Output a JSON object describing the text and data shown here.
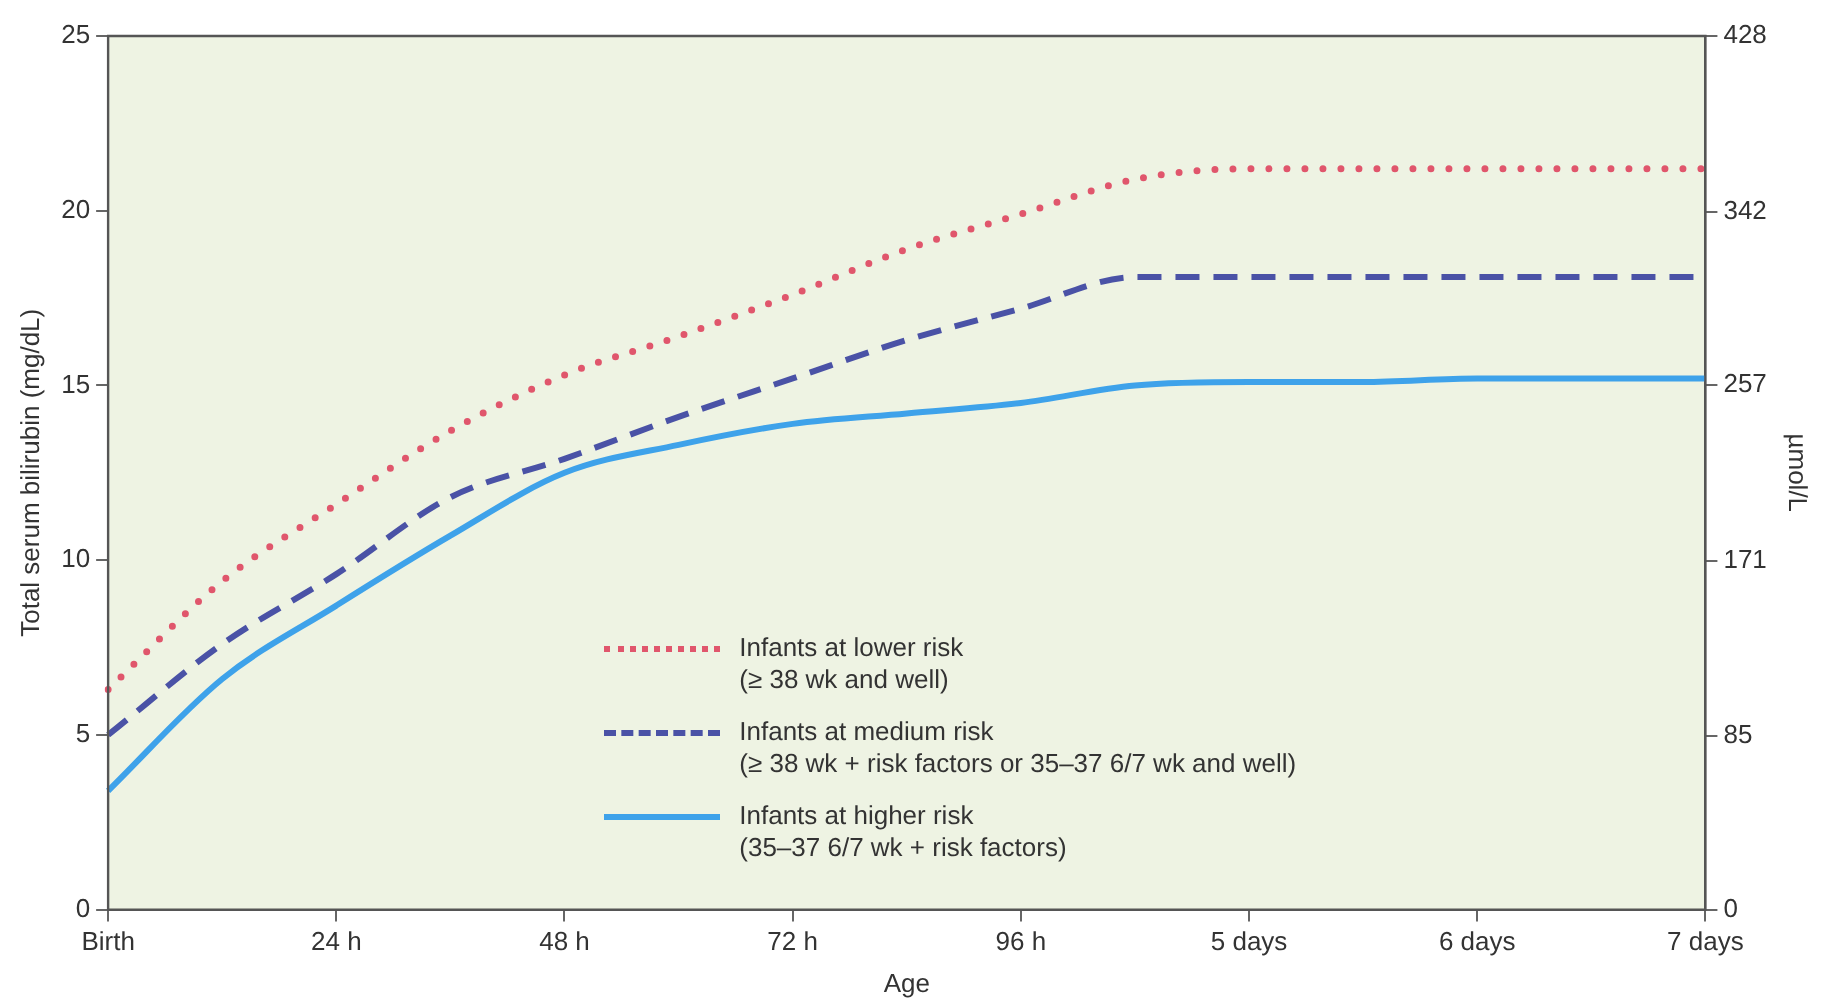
{
  "chart_data": {
    "type": "line",
    "xlabel": "Age",
    "ylabel": "Total serum bilirubin (mg/dL)",
    "y2label": "µmol/L",
    "categories": [
      "Birth",
      null,
      "24 h",
      null,
      "48 h",
      null,
      "72 h",
      null,
      "96 h",
      null,
      "5 days",
      null,
      "6 days",
      null,
      "7 days"
    ],
    "ylim": [
      0,
      25
    ],
    "yticks": [
      0,
      5,
      10,
      15,
      20,
      25
    ],
    "y2lim": [
      0,
      428
    ],
    "y2ticks": [
      0,
      85,
      171,
      257,
      342,
      428
    ],
    "legend": "bottom",
    "grid": false,
    "series": [
      {
        "name": "Infants at lower risk\n(≥ 38 wk and well)",
        "color": "#e0566c",
        "line_style": "dotted",
        "values": [
          6.3,
          9.4,
          11.6,
          13.7,
          15.3,
          16.4,
          17.6,
          18.9,
          19.9,
          20.9,
          21.2,
          21.2,
          21.2,
          21.2,
          21.2
        ]
      },
      {
        "name": "Infants at medium risk\n(≥ 38 wk + risk factors or 35–37 6/7 wk and well)",
        "color": "#4a52a6",
        "line_style": "dashed",
        "values": [
          5.0,
          7.6,
          9.6,
          11.8,
          12.9,
          14.1,
          15.2,
          16.3,
          17.2,
          18.1,
          18.1,
          18.1,
          18.1,
          18.1,
          18.1
        ]
      },
      {
        "name": "Infants at higher risk\n(35–37 6/7 wk + risk factors)",
        "color": "#3ea2ea",
        "line_style": "solid",
        "values": [
          3.4,
          6.6,
          8.7,
          10.7,
          12.5,
          13.3,
          13.9,
          14.2,
          14.5,
          15.0,
          15.1,
          15.1,
          15.2,
          15.2,
          15.2
        ]
      }
    ]
  }
}
